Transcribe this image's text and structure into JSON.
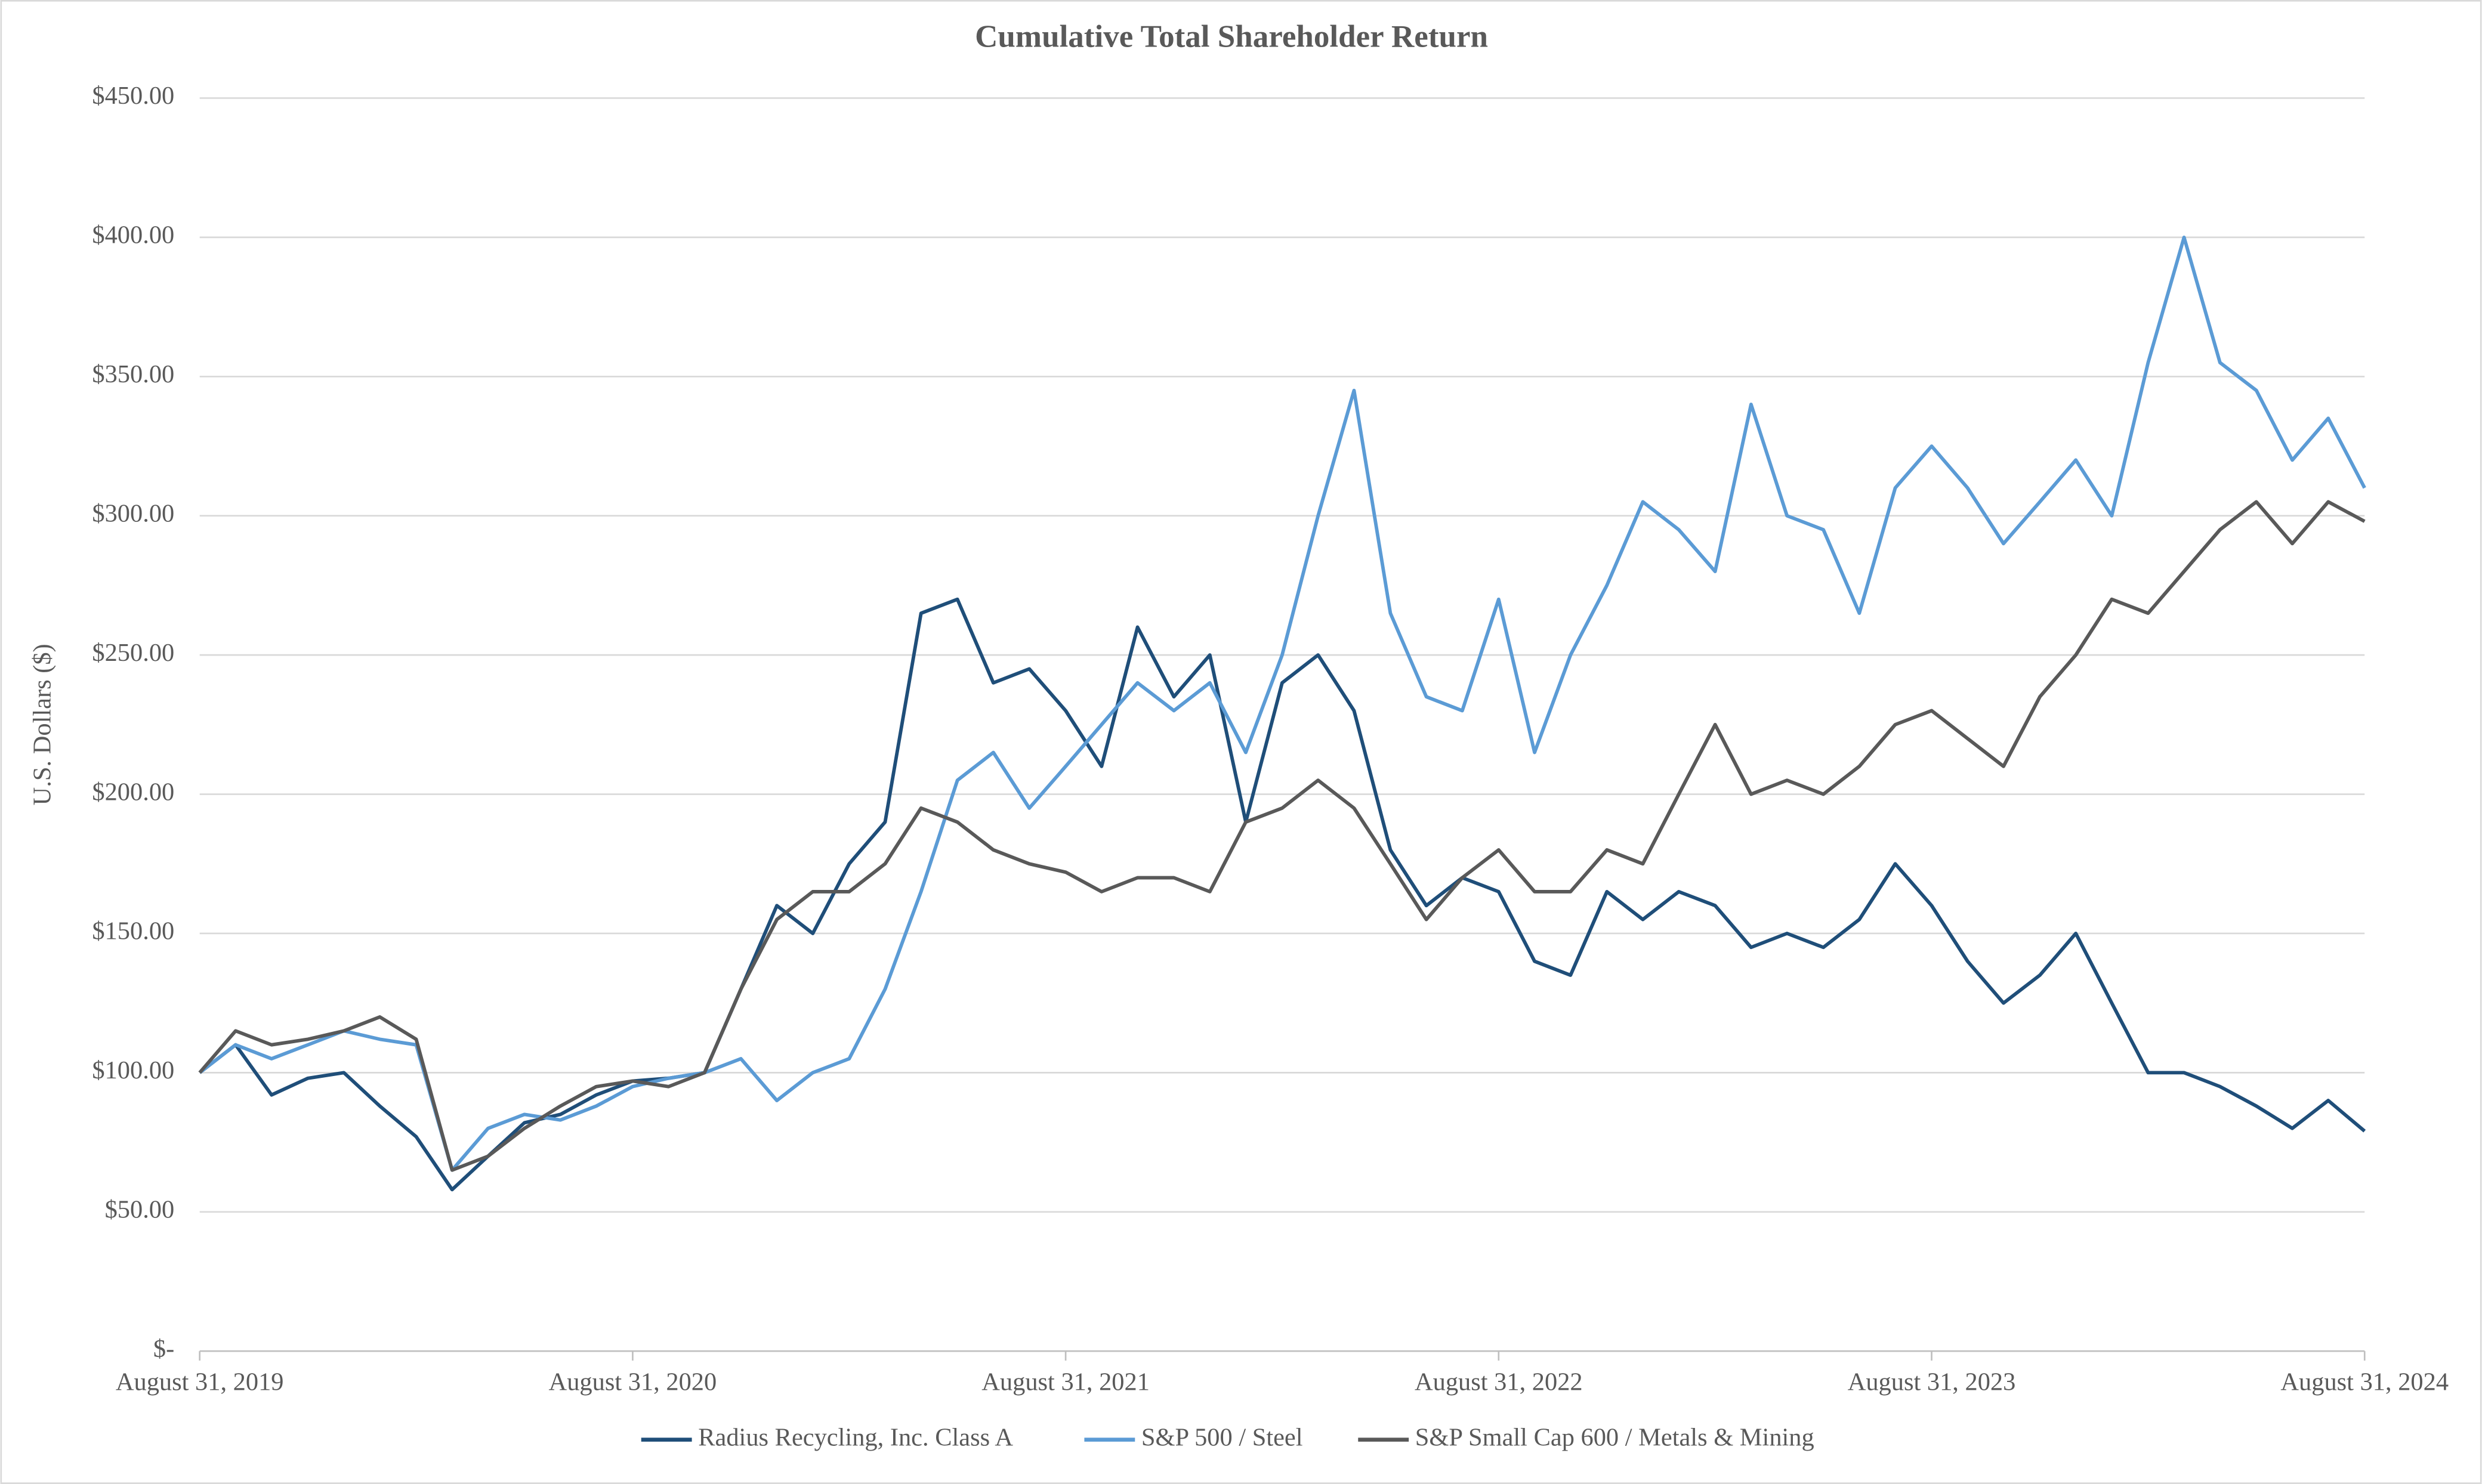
{
  "chart_data": {
    "type": "line",
    "title": "Cumulative Total Shareholder Return",
    "y_label": "U.S. Dollars ($)",
    "x": [
      2019.667,
      2019.75,
      2019.833,
      2019.917,
      2020.0,
      2020.083,
      2020.167,
      2020.25,
      2020.333,
      2020.417,
      2020.5,
      2020.583,
      2020.667,
      2020.75,
      2020.833,
      2020.917,
      2021.0,
      2021.083,
      2021.167,
      2021.25,
      2021.333,
      2021.417,
      2021.5,
      2021.583,
      2021.667,
      2021.75,
      2021.833,
      2021.917,
      2022.0,
      2022.083,
      2022.167,
      2022.25,
      2022.333,
      2022.417,
      2022.5,
      2022.583,
      2022.667,
      2022.75,
      2022.833,
      2022.917,
      2023.0,
      2023.083,
      2023.167,
      2023.25,
      2023.333,
      2023.417,
      2023.5,
      2023.583,
      2023.667,
      2023.75,
      2023.833,
      2023.917,
      2024.0,
      2024.083,
      2024.167,
      2024.25,
      2024.333,
      2024.417,
      2024.5,
      2024.583,
      2024.667
    ],
    "series": [
      {
        "name": "Radius Recycling, Inc. Class A",
        "color": "#1f4e79",
        "values": [
          100,
          110,
          92,
          98,
          100,
          88,
          77,
          58,
          70,
          82,
          85,
          92,
          97,
          98,
          100,
          130,
          160,
          150,
          175,
          190,
          265,
          270,
          240,
          245,
          230,
          210,
          260,
          235,
          250,
          190,
          240,
          250,
          230,
          180,
          160,
          170,
          165,
          140,
          135,
          165,
          155,
          165,
          160,
          145,
          150,
          145,
          155,
          175,
          160,
          140,
          125,
          135,
          150,
          125,
          100,
          100,
          95,
          88,
          80,
          90,
          79
        ]
      },
      {
        "name": "S&P 500 / Steel",
        "color": "#5b9bd5",
        "values": [
          100,
          110,
          105,
          110,
          115,
          112,
          110,
          65,
          80,
          85,
          83,
          88,
          95,
          98,
          100,
          105,
          90,
          100,
          105,
          130,
          165,
          205,
          215,
          195,
          210,
          225,
          240,
          230,
          240,
          215,
          250,
          300,
          345,
          265,
          235,
          230,
          270,
          215,
          250,
          275,
          305,
          295,
          280,
          340,
          300,
          295,
          265,
          310,
          325,
          310,
          290,
          305,
          320,
          300,
          355,
          400,
          355,
          345,
          320,
          335,
          310
        ]
      },
      {
        "name": "S&P Small Cap 600 / Metals & Mining",
        "color": "#595959",
        "values": [
          100,
          115,
          110,
          112,
          115,
          120,
          112,
          65,
          70,
          80,
          88,
          95,
          97,
          95,
          100,
          130,
          155,
          165,
          165,
          175,
          195,
          190,
          180,
          175,
          172,
          165,
          170,
          170,
          165,
          190,
          195,
          205,
          195,
          175,
          155,
          170,
          180,
          165,
          165,
          180,
          175,
          200,
          225,
          200,
          205,
          200,
          210,
          225,
          230,
          220,
          210,
          235,
          250,
          270,
          265,
          280,
          295,
          305,
          290,
          305,
          298
        ]
      }
    ],
    "xlim": [
      2019.667,
      2024.667
    ],
    "xticks": [
      {
        "value": 2019.667,
        "label": "August 31, 2019"
      },
      {
        "value": 2020.667,
        "label": "August 31, 2020"
      },
      {
        "value": 2021.667,
        "label": "August 31, 2021"
      },
      {
        "value": 2022.667,
        "label": "August 31, 2022"
      },
      {
        "value": 2023.667,
        "label": "August 31, 2023"
      },
      {
        "value": 2024.667,
        "label": "August 31, 2024"
      }
    ],
    "ylim": [
      0,
      450
    ],
    "yticks": [
      {
        "value": 0,
        "label": "$-"
      },
      {
        "value": 50,
        "label": "$50.00"
      },
      {
        "value": 100,
        "label": "$100.00"
      },
      {
        "value": 150,
        "label": "$150.00"
      },
      {
        "value": 200,
        "label": "$200.00"
      },
      {
        "value": 250,
        "label": "$250.00"
      },
      {
        "value": 300,
        "label": "$300.00"
      },
      {
        "value": 350,
        "label": "$350.00"
      },
      {
        "value": 400,
        "label": "$400.00"
      },
      {
        "value": 450,
        "label": "$450.00"
      }
    ],
    "grid": true,
    "legend": "bottom"
  }
}
